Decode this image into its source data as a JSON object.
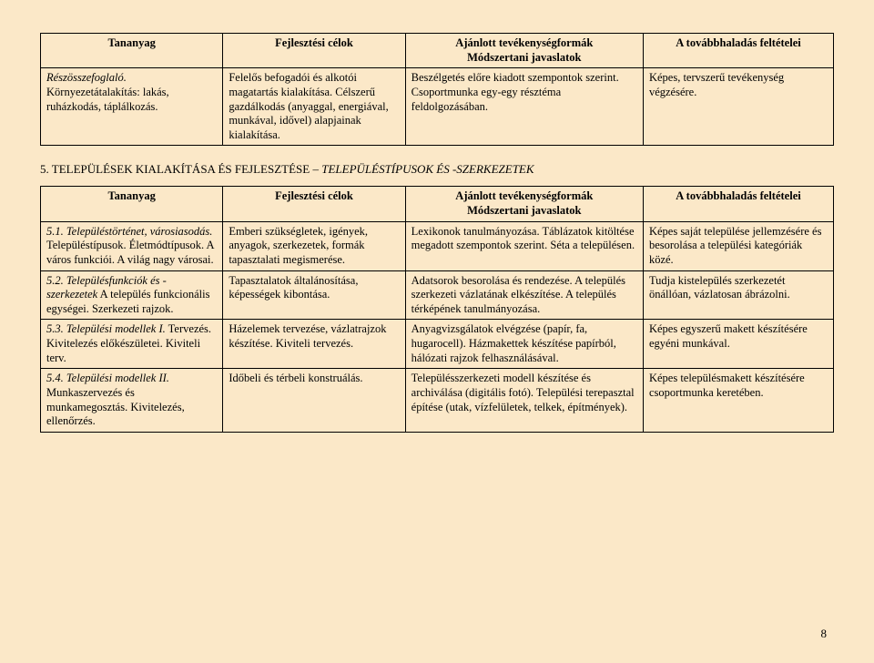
{
  "table1": {
    "headers": {
      "col1": "Tananyag",
      "col2": "Fejlesztési célok",
      "col3a": "Ajánlott tevékenységformák",
      "col3b": "Módszertani javaslatok",
      "col4": "A továbbhaladás feltételei"
    },
    "row": {
      "col1_i": "Részösszefoglaló.",
      "col1_rest": "Környezetátalakítás: lakás, ruházkodás, táplálkozás.",
      "col2": "Felelős befogadói és alkotói magatartás kialakítása. Célszerű gazdálkodás (anyaggal, energiával, munkával, idővel) alapjainak kialakítása.",
      "col3": "Beszélgetés előre kiadott szempontok szerint. Csoportmunka egy-egy résztéma feldolgozásában.",
      "col4": "Képes, tervszerű tevékenység végzésére."
    }
  },
  "section": {
    "prefix": "5. TELEPÜLÉSEK KIALAKÍTÁSA ÉS FEJLESZTÉSE – ",
    "italic": "TELEPÜLÉSTÍPUSOK ÉS -SZERKEZETEK"
  },
  "table2": {
    "headers": {
      "col1": "Tananyag",
      "col2": "Fejlesztési célok",
      "col3a": "Ajánlott tevékenységformák",
      "col3b": "Módszertani javaslatok",
      "col4": "A továbbhaladás feltételei"
    },
    "rows": [
      {
        "col1_i": "5.1. Településtörténet, városiasodás.",
        "col1_rest": "Településtípusok. Életmódtípusok. A város funkciói. A világ nagy városai.",
        "col2": "Emberi szükségletek, igények, anyagok, szerkezetek, formák tapasztalati megismerése.",
        "col3": "Lexikonok tanulmányozása. Táblázatok kitöltése megadott szempontok szerint. Séta a településen.",
        "col4": "Képes saját települése jellemzésére és besorolása a települési kategóriák közé."
      },
      {
        "col1_i": "5.2. Településfunkciók és -szerkezetek",
        "col1_rest": "A település funkcionális egységei. Szerkezeti rajzok.",
        "col2": "Tapasztalatok általánosítása, képességek kibontása.",
        "col3": "Adatsorok besorolása és rendezése. A település szerkezeti vázlatának elkészítése. A település térképének tanulmányozása.",
        "col4": "Tudja kistelepülés szerkezetét önállóan, vázlatosan ábrázolni."
      },
      {
        "col1_i": "5.3. Települési modellek I.",
        "col1_rest": "Tervezés. Kivitelezés előkészületei. Kiviteli terv.",
        "col2": "Házelemek tervezése, vázlatrajzok készítése. Kiviteli tervezés.",
        "col3": "Anyagvizsgálatok elvégzése (papír, fa, hugarocell). Házmakettek készítése papírból, hálózati rajzok felhasználásával.",
        "col4": "Képes egyszerű makett készítésére egyéni munkával."
      },
      {
        "col1_i": "5.4. Települési modellek II.",
        "col1_rest": "Munkaszervezés és munkamegosztás. Kivitelezés, ellenőrzés.",
        "col2": "Időbeli és térbeli konstruálás.",
        "col3": "Településszerkezeti modell készítése és archiválása (digitális fotó). Települési terepasztal építése (utak, vízfelületek, telkek, építmények).",
        "col4": "Képes településmakett készítésére csoportmunka keretében."
      }
    ]
  },
  "pageNumber": "8"
}
